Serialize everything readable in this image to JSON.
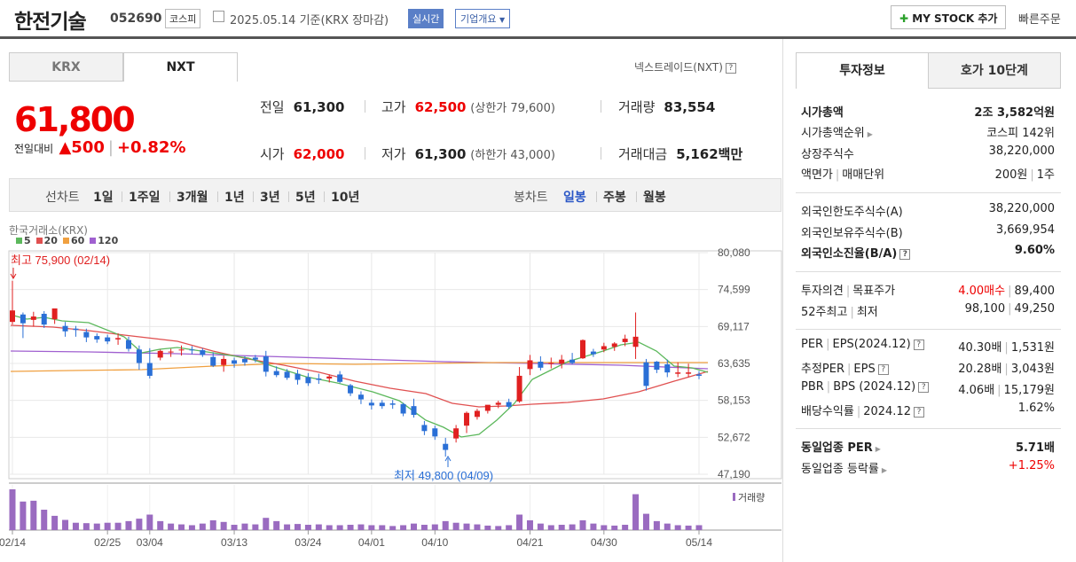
{
  "header": {
    "title": "한전기술",
    "code": "052690",
    "market": "코스피",
    "date": "2025.05.14 기준(KRX 장마감)",
    "realtime": "실시간",
    "overview": "기업개요",
    "mystock": "MY STOCK 추가",
    "quick_order": "빠른주문"
  },
  "tabs": {
    "krx": "KRX",
    "nxt": "NXT"
  },
  "nxt_link": "넥스트레이드(NXT)",
  "price": {
    "current": "61,800",
    "change_label": "전일대비",
    "change": "▲500",
    "change_pct": "+0.82%"
  },
  "quote": {
    "prev_label": "전일",
    "prev": "61,300",
    "high_label": "고가",
    "high": "62,500",
    "upper_limit": "(상한가 79,600)",
    "volume_label": "거래량",
    "volume": "83,554",
    "open_label": "시가",
    "open": "62,000",
    "low_label": "저가",
    "low": "61,300",
    "lower_limit": "(하한가 43,000)",
    "amount_label": "거래대금",
    "amount": "5,162",
    "amount_unit": "백만"
  },
  "periods": {
    "line_label": "선차트",
    "p1d": "1일",
    "p1w": "1주일",
    "p3m": "3개월",
    "p1y": "1년",
    "p3y": "3년",
    "p5y": "5년",
    "p10y": "10년",
    "candle_label": "봉차트",
    "daily": "일봉",
    "weekly": "주봉",
    "monthly": "월봉"
  },
  "chart_data": {
    "type": "candlestick",
    "source": "한국거래소(KRX)",
    "ma_legend": [
      {
        "name": "5",
        "color": "#5cb85c"
      },
      {
        "name": "20",
        "color": "#e05050"
      },
      {
        "name": "60",
        "color": "#f0a040"
      },
      {
        "name": "120",
        "color": "#a060d0"
      }
    ],
    "y_ticks": [
      "80,080",
      "74,599",
      "69,117",
      "63,635",
      "58,153",
      "52,672",
      "47,190"
    ],
    "ylim": [
      47190,
      80080
    ],
    "x_ticks": [
      "02/14",
      "02/25",
      "03/04",
      "03/13",
      "03/24",
      "04/01",
      "04/10",
      "04/21",
      "04/30",
      "05/14"
    ],
    "high_annotation": "최고 75,900 (02/14)",
    "low_annotation": "최저 49,800 (04/09)",
    "volume_label": "거래량",
    "candles": [
      {
        "o": 69800,
        "h": 75900,
        "l": 69400,
        "c": 71500
      },
      {
        "o": 70900,
        "h": 71200,
        "l": 67400,
        "c": 69600
      },
      {
        "o": 70100,
        "h": 71300,
        "l": 69100,
        "c": 70600
      },
      {
        "o": 71000,
        "h": 71400,
        "l": 68900,
        "c": 69400
      },
      {
        "o": 70200,
        "h": 71700,
        "l": 69500,
        "c": 71800
      },
      {
        "o": 69200,
        "h": 69800,
        "l": 67600,
        "c": 68400
      },
      {
        "o": 68800,
        "h": 69200,
        "l": 67600,
        "c": 68600
      },
      {
        "o": 68300,
        "h": 68800,
        "l": 66800,
        "c": 67500
      },
      {
        "o": 67700,
        "h": 68100,
        "l": 66700,
        "c": 67200
      },
      {
        "o": 67500,
        "h": 67900,
        "l": 66500,
        "c": 66900
      },
      {
        "o": 67200,
        "h": 68100,
        "l": 66400,
        "c": 67400
      },
      {
        "o": 67100,
        "h": 67600,
        "l": 65400,
        "c": 65800
      },
      {
        "o": 65700,
        "h": 66300,
        "l": 62700,
        "c": 63700
      },
      {
        "o": 63700,
        "h": 65900,
        "l": 61400,
        "c": 61800
      },
      {
        "o": 64500,
        "h": 65700,
        "l": 64100,
        "c": 65500
      },
      {
        "o": 65300,
        "h": 65800,
        "l": 64600,
        "c": 65400
      },
      {
        "o": 65600,
        "h": 66300,
        "l": 64800,
        "c": 65700
      },
      {
        "o": 65700,
        "h": 66200,
        "l": 65000,
        "c": 65600
      },
      {
        "o": 65600,
        "h": 65900,
        "l": 64600,
        "c": 64900
      },
      {
        "o": 64600,
        "h": 65300,
        "l": 63100,
        "c": 63300
      },
      {
        "o": 63400,
        "h": 64800,
        "l": 62400,
        "c": 64300
      },
      {
        "o": 64100,
        "h": 64500,
        "l": 63000,
        "c": 63600
      },
      {
        "o": 64300,
        "h": 64700,
        "l": 63300,
        "c": 63800
      },
      {
        "o": 64500,
        "h": 64900,
        "l": 63800,
        "c": 64200
      },
      {
        "o": 64700,
        "h": 65500,
        "l": 61700,
        "c": 62400
      },
      {
        "o": 62500,
        "h": 63200,
        "l": 61600,
        "c": 61900
      },
      {
        "o": 62400,
        "h": 62800,
        "l": 61200,
        "c": 61500
      },
      {
        "o": 62100,
        "h": 62700,
        "l": 60500,
        "c": 61200
      },
      {
        "o": 61600,
        "h": 62200,
        "l": 60300,
        "c": 60700
      },
      {
        "o": 61400,
        "h": 62100,
        "l": 60600,
        "c": 61200
      },
      {
        "o": 61400,
        "h": 62000,
        "l": 60800,
        "c": 61700
      },
      {
        "o": 62000,
        "h": 62500,
        "l": 60700,
        "c": 60900
      },
      {
        "o": 60400,
        "h": 60600,
        "l": 58800,
        "c": 59200
      },
      {
        "o": 59000,
        "h": 59500,
        "l": 57600,
        "c": 58300
      },
      {
        "o": 57800,
        "h": 58300,
        "l": 56800,
        "c": 57400
      },
      {
        "o": 57800,
        "h": 58200,
        "l": 56900,
        "c": 57300
      },
      {
        "o": 57700,
        "h": 58200,
        "l": 56900,
        "c": 57500
      },
      {
        "o": 57600,
        "h": 57800,
        "l": 55800,
        "c": 56200
      },
      {
        "o": 57300,
        "h": 58400,
        "l": 55600,
        "c": 56000
      },
      {
        "o": 54500,
        "h": 55100,
        "l": 53000,
        "c": 53600
      },
      {
        "o": 54000,
        "h": 54400,
        "l": 52300,
        "c": 52800
      },
      {
        "o": 51700,
        "h": 52600,
        "l": 49800,
        "c": 50800
      },
      {
        "o": 52500,
        "h": 54500,
        "l": 51900,
        "c": 54000
      },
      {
        "o": 54400,
        "h": 56500,
        "l": 53300,
        "c": 56300
      },
      {
        "o": 55700,
        "h": 56900,
        "l": 55300,
        "c": 56600
      },
      {
        "o": 56600,
        "h": 57400,
        "l": 56200,
        "c": 57500
      },
      {
        "o": 57500,
        "h": 58100,
        "l": 57000,
        "c": 57800
      },
      {
        "o": 57900,
        "h": 58400,
        "l": 56900,
        "c": 57200
      },
      {
        "o": 58000,
        "h": 63100,
        "l": 57800,
        "c": 61800
      },
      {
        "o": 62800,
        "h": 64900,
        "l": 61900,
        "c": 64100
      },
      {
        "o": 63900,
        "h": 64700,
        "l": 62600,
        "c": 63000
      },
      {
        "o": 63600,
        "h": 64500,
        "l": 62900,
        "c": 63700
      },
      {
        "o": 63600,
        "h": 64900,
        "l": 62900,
        "c": 64200
      },
      {
        "o": 64200,
        "h": 65200,
        "l": 63500,
        "c": 63700
      },
      {
        "o": 64400,
        "h": 67200,
        "l": 64300,
        "c": 67100
      },
      {
        "o": 65400,
        "h": 65800,
        "l": 64600,
        "c": 65000
      },
      {
        "o": 65700,
        "h": 66700,
        "l": 65300,
        "c": 66200
      },
      {
        "o": 66100,
        "h": 66800,
        "l": 65500,
        "c": 66600
      },
      {
        "o": 66800,
        "h": 67900,
        "l": 66200,
        "c": 67300
      },
      {
        "o": 66100,
        "h": 71200,
        "l": 64300,
        "c": 67600
      },
      {
        "o": 63800,
        "h": 64300,
        "l": 59600,
        "c": 60300
      },
      {
        "o": 63900,
        "h": 64000,
        "l": 62200,
        "c": 62700
      },
      {
        "o": 63500,
        "h": 64200,
        "l": 61600,
        "c": 62300
      },
      {
        "o": 62100,
        "h": 63800,
        "l": 61600,
        "c": 62300
      },
      {
        "o": 62100,
        "h": 63600,
        "l": 61600,
        "c": 62300
      },
      {
        "o": 62000,
        "h": 62500,
        "l": 61300,
        "c": 61800
      }
    ],
    "volumes": [
      100,
      70,
      72,
      50,
      35,
      25,
      18,
      17,
      16,
      18,
      18,
      22,
      28,
      38,
      22,
      16,
      14,
      12,
      16,
      24,
      20,
      13,
      16,
      14,
      30,
      22,
      14,
      15,
      13,
      14,
      12,
      12,
      13,
      14,
      12,
      12,
      10,
      12,
      16,
      13,
      14,
      22,
      18,
      16,
      14,
      11,
      10,
      12,
      38,
      24,
      16,
      12,
      13,
      14,
      24,
      16,
      12,
      11,
      13,
      88,
      40,
      22,
      16,
      12,
      11,
      12
    ],
    "ma5": [
      [
        12,
        355
      ],
      [
        30,
        360
      ],
      [
        50,
        358
      ],
      [
        70,
        362
      ],
      [
        100,
        364
      ],
      [
        140,
        380
      ],
      [
        160,
        398
      ],
      [
        180,
        394
      ],
      [
        200,
        392
      ],
      [
        240,
        398
      ],
      [
        280,
        404
      ],
      [
        310,
        414
      ],
      [
        345,
        425
      ],
      [
        380,
        432
      ],
      [
        420,
        442
      ],
      [
        450,
        452
      ],
      [
        480,
        474
      ],
      [
        500,
        482
      ],
      [
        520,
        493
      ],
      [
        540,
        490
      ],
      [
        560,
        474
      ],
      [
        580,
        455
      ],
      [
        600,
        428
      ],
      [
        620,
        418
      ],
      [
        640,
        408
      ],
      [
        680,
        396
      ],
      [
        700,
        389
      ],
      [
        720,
        386
      ],
      [
        740,
        396
      ],
      [
        760,
        413
      ],
      [
        780,
        415
      ],
      [
        798,
        420
      ]
    ],
    "ma20": [
      [
        12,
        367
      ],
      [
        60,
        369
      ],
      [
        100,
        373
      ],
      [
        140,
        378
      ],
      [
        200,
        385
      ],
      [
        240,
        396
      ],
      [
        280,
        405
      ],
      [
        320,
        412
      ],
      [
        360,
        420
      ],
      [
        400,
        430
      ],
      [
        440,
        438
      ],
      [
        480,
        444
      ],
      [
        510,
        455
      ],
      [
        540,
        459
      ],
      [
        570,
        458
      ],
      [
        600,
        456
      ],
      [
        640,
        454
      ],
      [
        680,
        450
      ],
      [
        720,
        442
      ],
      [
        760,
        430
      ],
      [
        798,
        419
      ]
    ],
    "ma60": [
      [
        12,
        419
      ],
      [
        80,
        418
      ],
      [
        160,
        417
      ],
      [
        240,
        413
      ],
      [
        320,
        410
      ],
      [
        400,
        411
      ],
      [
        480,
        410
      ],
      [
        560,
        409
      ],
      [
        640,
        409
      ],
      [
        720,
        409
      ],
      [
        798,
        409
      ]
    ],
    "ma120": [
      [
        12,
        396
      ],
      [
        100,
        397
      ],
      [
        200,
        399
      ],
      [
        300,
        402
      ],
      [
        400,
        405
      ],
      [
        500,
        408
      ],
      [
        600,
        410
      ],
      [
        700,
        412
      ],
      [
        798,
        416
      ]
    ]
  },
  "right": {
    "tab_invest": "투자정보",
    "tab_orderbook": "호가 10단계",
    "market_cap_label": "시가총액",
    "market_cap": "2조 3,582억원",
    "rank_label": "시가총액순위",
    "rank": "코스피 142위",
    "shares_label": "상장주식수",
    "shares": "38,220,000",
    "par_label": "액면가",
    "lot_label": "매매단위",
    "par": "200원",
    "lot": "1주",
    "foreign_limit_label": "외국인한도주식수(A)",
    "foreign_limit": "38,220,000",
    "foreign_hold_label": "외국인보유주식수(B)",
    "foreign_hold": "3,669,954",
    "foreign_ratio_label": "외국인소진율(B/A)",
    "foreign_ratio": "9.60%",
    "opinion_label": "투자의견",
    "target_label": "목표주가",
    "opinion": "4.00매수",
    "target": "89,400",
    "w52_label": "52주최고",
    "w52_low_label": "최저",
    "w52_high": "98,100",
    "w52_low": "49,250",
    "per_label": "PER",
    "eps_label": "EPS(2024.12)",
    "per": "40.30배",
    "eps": "1,531원",
    "est_per_label": "추정PER",
    "est_eps_label": "EPS",
    "est_per": "20.28배",
    "est_eps": "3,043원",
    "pbr_label": "PBR",
    "bps_label": "BPS (2024.12)",
    "pbr": "4.06배",
    "bps": "15,179원",
    "div_label": "배당수익률",
    "div_date": "2024.12",
    "div": "1.62%",
    "ind_per_label": "동일업종 PER",
    "ind_per": "5.71배",
    "ind_chg_label": "동일업종 등락률",
    "ind_chg": "+1.25%"
  }
}
